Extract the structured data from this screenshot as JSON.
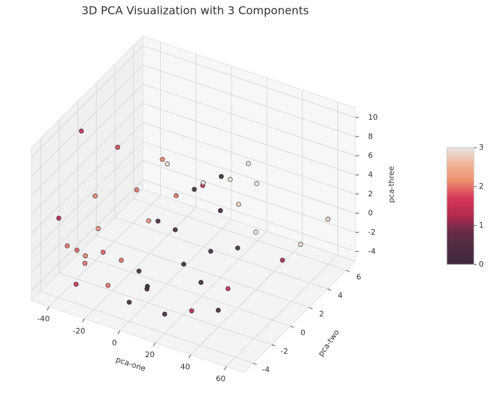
{
  "chart_data": {
    "type": "scatter3d",
    "title": "3D PCA Visualization with 3 Components",
    "xlabel": "pca-one",
    "ylabel": "pca-two",
    "zlabel": "pca-three",
    "xlim": [
      -50,
      70
    ],
    "xticks": [
      -40,
      -20,
      0,
      20,
      40,
      60
    ],
    "ylim": [
      -5,
      7
    ],
    "yticks": [
      -4,
      -2,
      0,
      2,
      4,
      6
    ],
    "zlim": [
      -5,
      11
    ],
    "zticks": [
      -4,
      -2,
      0,
      2,
      4,
      6,
      8,
      10
    ],
    "clim": [
      0,
      3
    ],
    "cticks": [
      0,
      1,
      2,
      3
    ],
    "colormap": [
      "#3e2a3e",
      "#4d2b42",
      "#6a2b48",
      "#b72a4f",
      "#d8385a",
      "#ec8f6e",
      "#f0b497",
      "#e9e4e3"
    ],
    "grid": true,
    "x": [
      -35,
      -30,
      -25,
      -28,
      -20,
      -15,
      -35,
      -38,
      -22,
      -10,
      -5,
      -18,
      -40,
      -12,
      -48,
      -45,
      -30,
      40,
      55,
      30,
      10,
      0,
      5,
      10,
      -5,
      15,
      20,
      25,
      -10,
      0,
      10,
      30,
      35,
      45,
      5,
      20,
      15,
      20,
      25,
      30,
      60,
      65,
      40,
      -10,
      5
    ],
    "y": [
      -4,
      -3,
      -4,
      -2,
      -3,
      -2,
      -1,
      2,
      1,
      0,
      2,
      3,
      -2,
      -4,
      0,
      -3,
      -4,
      -1,
      2,
      -3,
      2,
      -4,
      -3,
      -4,
      -2,
      -1,
      -4,
      0,
      1,
      3,
      4,
      -2,
      1,
      -3,
      0,
      2,
      4,
      5,
      3,
      4,
      3,
      5,
      2,
      2,
      3
    ],
    "z": [
      0.7,
      -1,
      -0.5,
      1,
      0,
      -1.5,
      3,
      5,
      2.5,
      1,
      2,
      4,
      -2,
      -2,
      8,
      2,
      -3,
      -2,
      -1,
      -3,
      4,
      -3,
      -2,
      -1,
      -2,
      -1,
      -3,
      0,
      0,
      2,
      3,
      -1,
      0,
      -2,
      1,
      2,
      3,
      4,
      2,
      3.5,
      0,
      1,
      1,
      5,
      3
    ],
    "color_values": [
      2,
      2.1,
      2,
      2.2,
      1.9,
      2,
      2.1,
      1.8,
      2,
      2.2,
      2,
      2.1,
      1.9,
      2,
      1.4,
      1.3,
      1.5,
      1.4,
      1.2,
      1.3,
      1.3,
      0.1,
      0.2,
      0,
      0.3,
      0.1,
      0.2,
      0.1,
      0.3,
      0.2,
      0,
      0.1,
      0.4,
      0.2,
      0.3,
      0.1,
      2.9,
      3,
      2.8,
      3,
      2.9,
      2.8,
      3,
      2.9,
      3
    ]
  }
}
